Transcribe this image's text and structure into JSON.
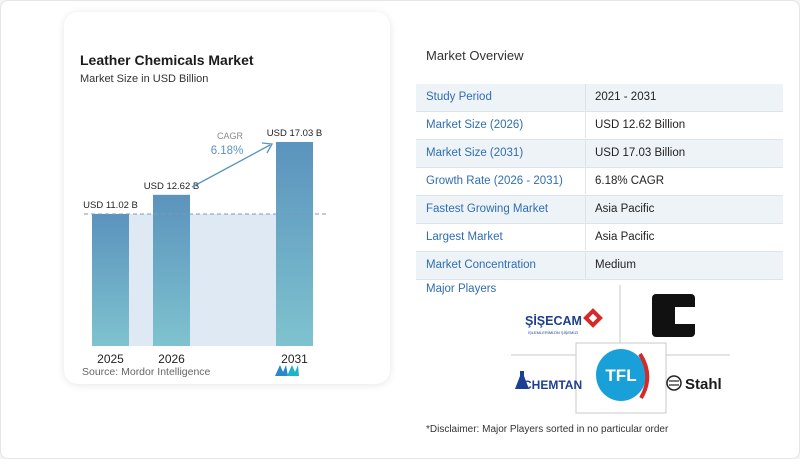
{
  "chart_data": {
    "type": "bar",
    "title": "Leather Chemicals Market",
    "subtitle": "Market Size in USD Billion",
    "categories": [
      "2025",
      "2026",
      "2031"
    ],
    "values": [
      11.02,
      12.62,
      17.03
    ],
    "value_labels": [
      "USD 11.02 B",
      "USD 12.62 B",
      "USD 17.03 B"
    ],
    "ylim": [
      0,
      17.03
    ],
    "cagr_label": "CAGR",
    "cagr_value": "6.18%",
    "bar_color": "#5b93bd",
    "bar_color_light": "#7fc3cf",
    "band_color": "#dfe9f3",
    "source": "Source:  Mordor Intelligence"
  },
  "overview": {
    "title": "Market Overview",
    "rows": [
      {
        "label": "Study Period",
        "value": "2021 - 2031"
      },
      {
        "label": "Market Size (2026)",
        "value": "USD 12.62 Billion"
      },
      {
        "label": "Market Size (2031)",
        "value": "USD 17.03 Billion"
      },
      {
        "label": "Growth Rate (2026 - 2031)",
        "value": "6.18% CAGR"
      },
      {
        "label": "Fastest Growing Market",
        "value": "Asia Pacific"
      },
      {
        "label": "Largest Market",
        "value": "Asia Pacific"
      },
      {
        "label": "Market Concentration",
        "value": "Medium"
      }
    ]
  },
  "players": {
    "label": "Major Players",
    "logos": {
      "sisecam": "ŞİŞECAM",
      "sisecam_sub": "İŞLEMLERİMİZİN ŞİŞEMİZİ",
      "chemtan": "CHEMTAN",
      "tfl": "TFL",
      "stahl": "Stahl"
    },
    "disclaimer": "*Disclaimer: Major Players sorted in no particular order"
  },
  "colors": {
    "accent": "#2f6db2",
    "logo_red": "#d42a2a",
    "logo_navy": "#1d3f8f",
    "tfl_blue": "#1aa0d8"
  }
}
